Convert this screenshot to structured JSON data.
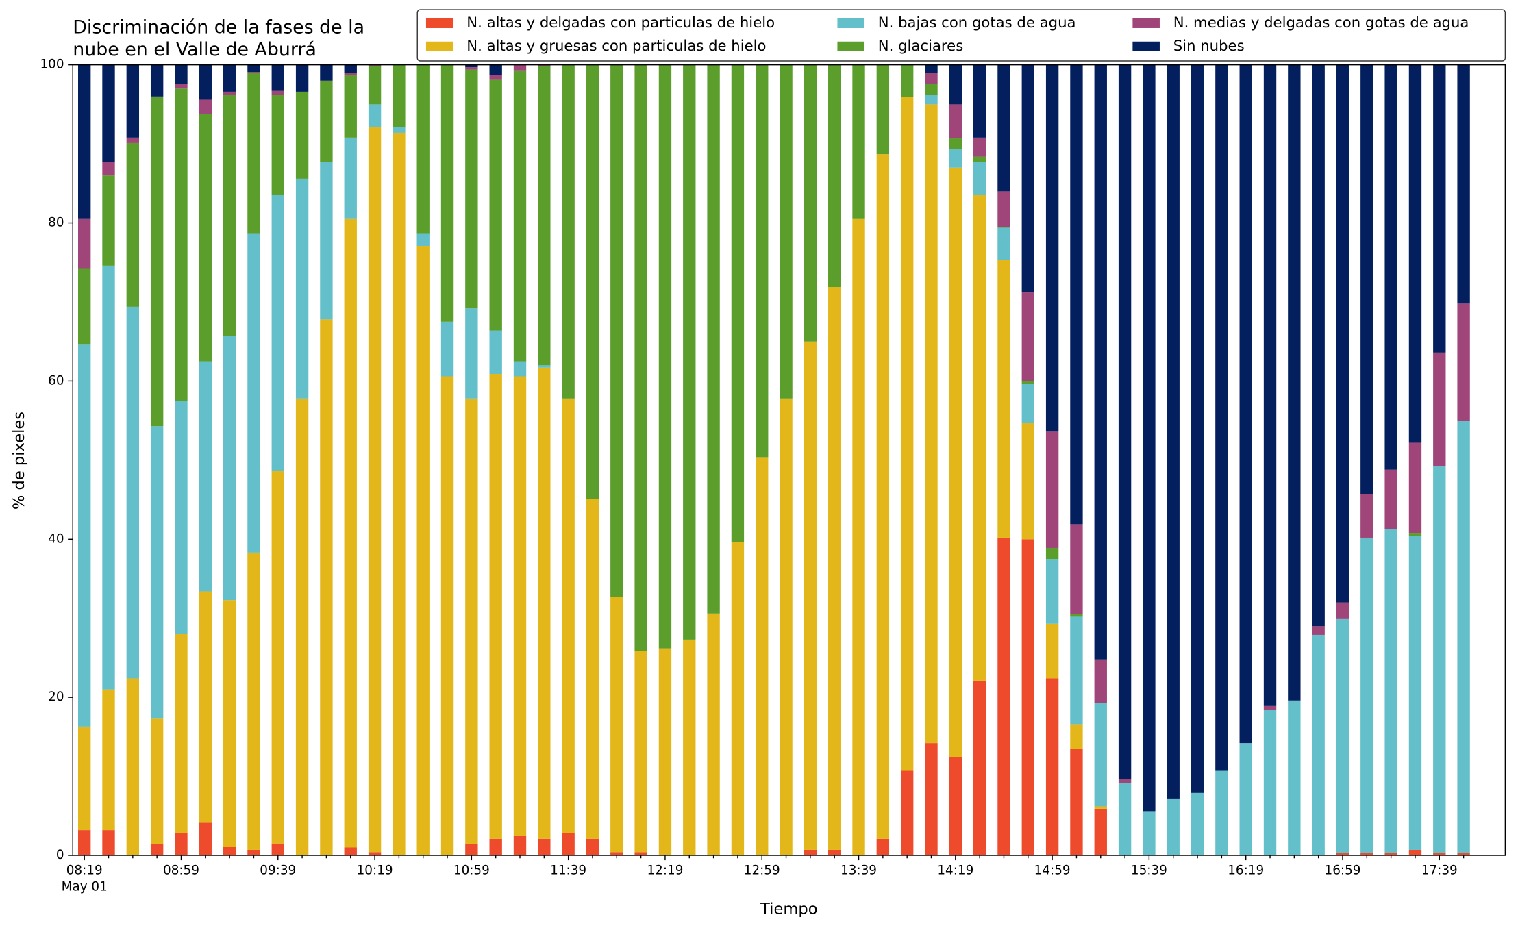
{
  "chart_data": {
    "type": "stacked_bar",
    "title": [
      "Discriminación de la fases de la",
      "nube en el Valle de Aburrá"
    ],
    "xlabel": "Tiempo",
    "ylabel": "% de pixeles",
    "date_label": "May 01",
    "categories": [
      "08:19",
      null,
      null,
      null,
      "08:59",
      null,
      null,
      null,
      "09:39",
      null,
      null,
      null,
      "10:19",
      null,
      null,
      null,
      "10:59",
      null,
      null,
      null,
      "11:39",
      null,
      null,
      null,
      "12:19",
      null,
      null,
      null,
      "12:59",
      null,
      null,
      null,
      "13:39",
      null,
      null,
      null,
      "14:19",
      null,
      null,
      null,
      "14:59",
      null,
      null,
      null,
      "15:39",
      null,
      null,
      null,
      "16:19",
      null,
      null,
      null,
      "16:59",
      null,
      null,
      null,
      "17:39",
      null
    ],
    "ylim": [
      0,
      100
    ],
    "yticks": [
      0,
      20,
      40,
      60,
      80,
      100
    ],
    "grid": false,
    "legend": "top",
    "series": [
      {
        "name": "N. altas y delgadas con particulas de hielo",
        "color": "#ee4a2c",
        "values": [
          3.2,
          3.2,
          0,
          1.4,
          2.8,
          4.2,
          1.1,
          0.7,
          1.5,
          0,
          0,
          1,
          0.4,
          0,
          0,
          0,
          1.4,
          2.1,
          2.5,
          2.1,
          2.8,
          2.1,
          0.4,
          0.4,
          0,
          0,
          0,
          0,
          0,
          0,
          0.7,
          0.7,
          0,
          2.1,
          10.7,
          14.2,
          12.4,
          22.1,
          40.2,
          40,
          22.4,
          13.5,
          5.9,
          0,
          0,
          0,
          0,
          0,
          0,
          0,
          0,
          0,
          0.3,
          0.3,
          0.3,
          0.7,
          0.3,
          0.3
        ]
      },
      {
        "name": "N. altas y gruesas con particulas de hielo",
        "color": "#e3b71a",
        "values": [
          13.1,
          17.8,
          22.4,
          15.9,
          25.2,
          29.2,
          31.2,
          37.6,
          47.1,
          57.8,
          67.8,
          79.5,
          91.7,
          91.4,
          77.1,
          60.6,
          56.4,
          58.8,
          58.1,
          59.6,
          55,
          43,
          32.3,
          25.5,
          26.2,
          27.3,
          30.6,
          39.6,
          50.3,
          57.8,
          64.3,
          71.2,
          80.5,
          86.6,
          85.2,
          80.8,
          74.6,
          61.5,
          35.1,
          14.7,
          6.9,
          3.1,
          0.3,
          0,
          0,
          0,
          0,
          0,
          0,
          0,
          0,
          0,
          0,
          0,
          0,
          0,
          0,
          0
        ]
      },
      {
        "name": "N. bajas con gotas de agua",
        "color": "#63bfca",
        "values": [
          48.3,
          53.6,
          47,
          37,
          29.5,
          29.1,
          33.4,
          40.4,
          35,
          27.8,
          19.9,
          10.3,
          2.9,
          0.7,
          1.6,
          6.9,
          11.4,
          5.5,
          1.9,
          0.3,
          0,
          0,
          0,
          0,
          0,
          0,
          0,
          0,
          0,
          0,
          0,
          0,
          0,
          0,
          0,
          1.2,
          2.4,
          4.1,
          4.1,
          4.9,
          8.2,
          13.6,
          13.1,
          9.1,
          5.6,
          7.2,
          7.9,
          10.7,
          14.2,
          18.4,
          19.6,
          27.9,
          29.6,
          39.9,
          41,
          39.7,
          48.9,
          54.7
        ]
      },
      {
        "name": "N. glaciares",
        "color": "#5b9e2c",
        "values": [
          9.6,
          11.4,
          20.7,
          41.6,
          39.5,
          31.3,
          30.5,
          20.3,
          12.6,
          11,
          10.2,
          7.9,
          4.8,
          7.9,
          21.3,
          32.5,
          30.2,
          31.7,
          36.8,
          37.8,
          42.2,
          54.9,
          67.3,
          74.1,
          73.8,
          72.7,
          69.4,
          60.4,
          49.7,
          42.2,
          35,
          28.1,
          19.5,
          11.3,
          4.1,
          1.4,
          1.3,
          0.7,
          0.1,
          0.4,
          1.4,
          0.3,
          0,
          0,
          0,
          0,
          0,
          0,
          0,
          0,
          0,
          0,
          0,
          0,
          0,
          0.4,
          0,
          0
        ]
      },
      {
        "name": "N. medias y delgadas con gotas de agua",
        "color": "#a0457a",
        "values": [
          6.3,
          1.7,
          0.7,
          0.1,
          0.6,
          1.8,
          0.4,
          0.1,
          0.5,
          0,
          0.1,
          0.3,
          0.2,
          0,
          0,
          0,
          0.3,
          0.6,
          0.7,
          0.2,
          0,
          0,
          0,
          0,
          0,
          0,
          0,
          0,
          0,
          0,
          0,
          0,
          0,
          0,
          0,
          1.4,
          4.3,
          2.4,
          4.5,
          11.2,
          14.7,
          11.4,
          5.5,
          0.6,
          0,
          0,
          0,
          0,
          0,
          0.5,
          0,
          1.1,
          2.1,
          5.5,
          7.5,
          11.4,
          14.4,
          14.8
        ]
      },
      {
        "name": "Sin nubes",
        "color": "#031f5e",
        "values": [
          19.5,
          12.3,
          9.2,
          4,
          2.4,
          4.4,
          3.4,
          0.9,
          3.3,
          3.4,
          2,
          1,
          0,
          0,
          0,
          0,
          0.3,
          1.3,
          0,
          0,
          0,
          0,
          0,
          0,
          0,
          0,
          0,
          0,
          0,
          0,
          0,
          0,
          0,
          0,
          0,
          1,
          5,
          9.2,
          16,
          28.8,
          46.4,
          58.1,
          75.2,
          90.3,
          94.4,
          92.8,
          92.1,
          89.3,
          85.8,
          81.1,
          80.4,
          71,
          68,
          54.3,
          51.2,
          47.8,
          36.4,
          30.2
        ]
      }
    ]
  }
}
